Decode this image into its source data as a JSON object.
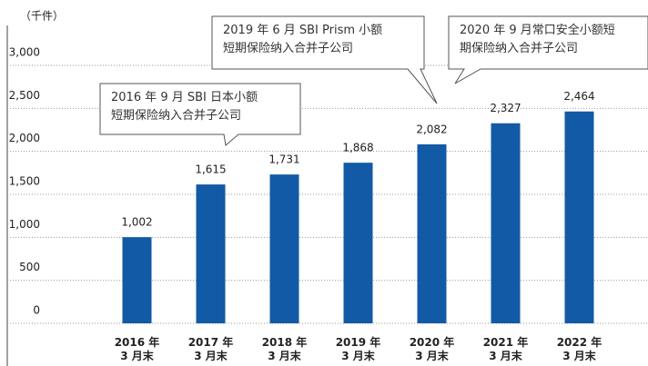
{
  "chart_data": {
    "type": "bar",
    "y_label": "（千件）",
    "categories": [
      "2016 年\n3 月末",
      "2017 年\n3 月末",
      "2018 年\n3 月末",
      "2019 年\n3 月末",
      "2020 年\n3 月末",
      "2021 年\n3 月末",
      "2022 年\n3 月末"
    ],
    "values": [
      1002,
      1615,
      1731,
      1868,
      2082,
      2327,
      2464
    ],
    "value_labels": [
      "1,002",
      "1,615",
      "1,731",
      "1,868",
      "2,082",
      "2,327",
      "2,464"
    ],
    "color": "#125aa5",
    "ylim": [
      0,
      3000
    ],
    "yticks": [
      0,
      500,
      {
        "value": 1000,
        "label": "1,000"
      },
      {
        "value": 1500,
        "label": "1,500"
      },
      {
        "value": 2000,
        "label": "2,000"
      },
      {
        "value": 2500,
        "label": "2,500"
      },
      {
        "value": 3000,
        "label": "3,000"
      }
    ],
    "grid": true,
    "annotations": [
      "2016 年 9 月 SBI 日本小额\n短期保险纳入合并子公司",
      "2019 年 6 月 SBI Prism 小额\n短期保险纳入合并子公司",
      "2020 年 9 月常口安全小额短\n期保险纳入合并子公司"
    ]
  }
}
